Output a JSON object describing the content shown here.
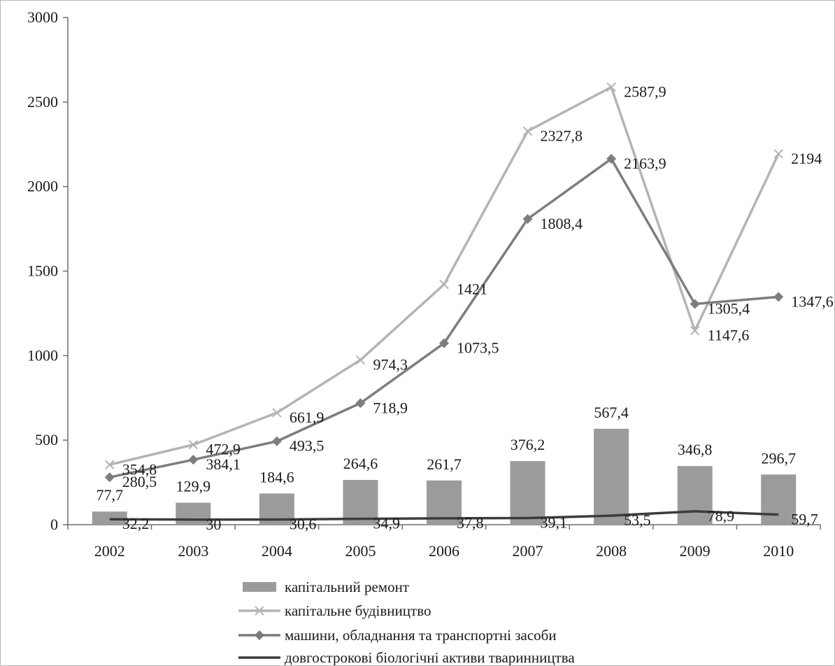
{
  "chart_data": {
    "type": "bar",
    "categories": [
      "2002",
      "2003",
      "2004",
      "2005",
      "2006",
      "2007",
      "2008",
      "2009",
      "2010"
    ],
    "ylim": [
      0,
      3000
    ],
    "yticks": [
      0,
      500,
      1000,
      1500,
      2000,
      2500,
      3000
    ],
    "ytick_labels": [
      "0",
      "500",
      "1000",
      "1500",
      "2000",
      "2500",
      "3000"
    ],
    "grid": false,
    "legend_position": "bottom",
    "series": [
      {
        "name": "капітальний ремонт",
        "kind": "bar",
        "color": "#9b9b9b",
        "values": [
          77.7,
          129.9,
          184.6,
          264.6,
          261.7,
          376.2,
          567.4,
          346.8,
          296.7
        ],
        "labels": [
          "77,7",
          "129,9",
          "184,6",
          "264,6",
          "261,7",
          "376,2",
          "567,4",
          "346,8",
          "296,7"
        ]
      },
      {
        "name": "капітальне будівництво",
        "kind": "line",
        "marker": "x",
        "color": "#b4b4b4",
        "values": [
          354.8,
          472.9,
          661.9,
          974.3,
          1421,
          2327.8,
          2587.9,
          1147.6,
          2194
        ],
        "labels": [
          "354,8",
          "472,9",
          "661,9",
          "974,3",
          "1421",
          "2327,8",
          "2587,9",
          "1147,6",
          "2194"
        ]
      },
      {
        "name": "машини, обладнання та транспортні засоби",
        "kind": "line",
        "marker": "diamond",
        "color": "#7d7d7d",
        "values": [
          280.5,
          384.1,
          493.5,
          718.9,
          1073.5,
          1808.4,
          2163.9,
          1305.4,
          1347.6
        ],
        "labels": [
          "280,5",
          "384,1",
          "493,5",
          "718,9",
          "1073,5",
          "1808,4",
          "2163,9",
          "1305,4",
          "1347,6"
        ]
      },
      {
        "name": "довгострокові біологічні активи тваринництва",
        "kind": "line",
        "marker": "none",
        "color": "#3c3c3c",
        "values": [
          32.2,
          30,
          30.6,
          34.9,
          37.8,
          39.1,
          53.5,
          78.9,
          59.7
        ],
        "labels": [
          "32,2",
          "30",
          "30,6",
          "34,9",
          "37,8",
          "39,1",
          "53,5",
          "78,9",
          "59,7"
        ]
      }
    ]
  }
}
